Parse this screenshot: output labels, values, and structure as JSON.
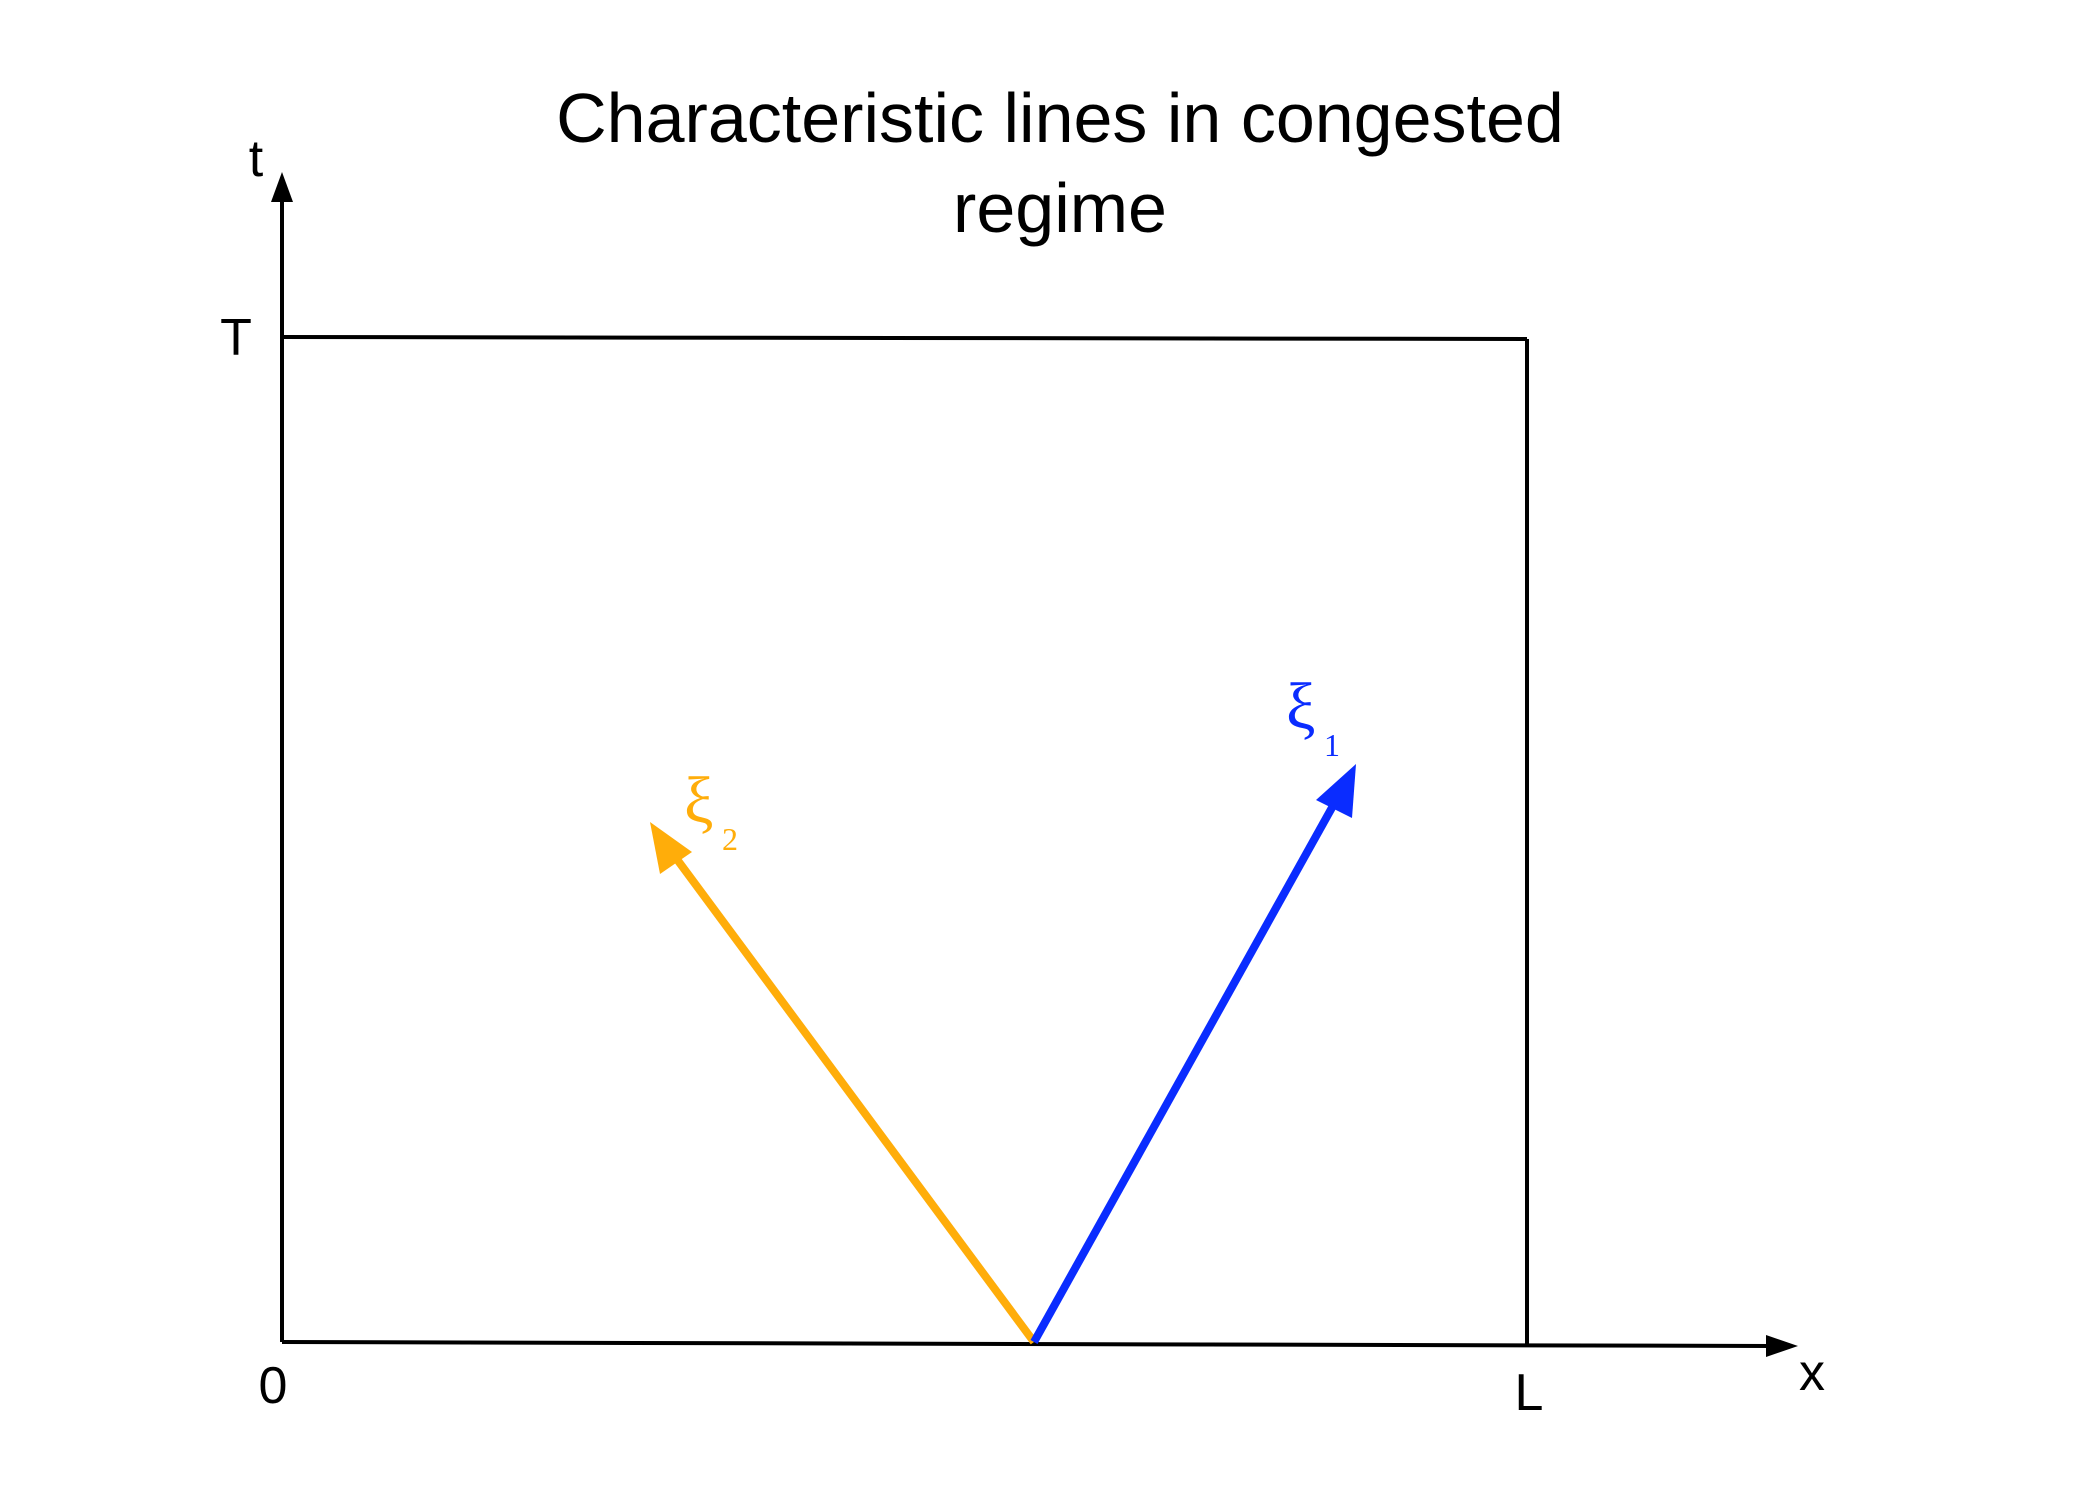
{
  "title": {
    "line1": "Characteristic lines in congested",
    "line2": "regime"
  },
  "axes": {
    "x_label": "x",
    "t_label": "t",
    "origin_label": "0",
    "length_label": "L",
    "time_label": "T"
  },
  "characteristics": [
    {
      "symbol": "ξ",
      "subscript": "1",
      "color": "#0a2cff",
      "direction": "up-right"
    },
    {
      "symbol": "ξ",
      "subscript": "2",
      "color": "#ffad0a",
      "direction": "up-left"
    }
  ],
  "colors": {
    "axis": "#000000",
    "xi1": "#0a2cff",
    "xi2": "#ffad0a"
  }
}
